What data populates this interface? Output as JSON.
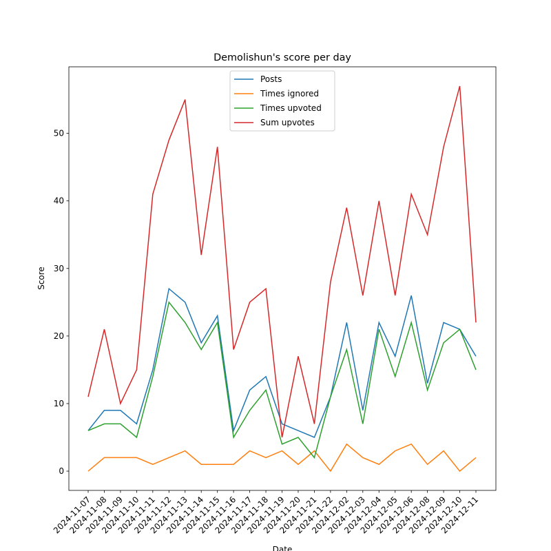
{
  "chart_data": {
    "type": "line",
    "title": "Demolishun's score per day",
    "x_label": "Date",
    "y_label": "Score",
    "categories": [
      "2024-11-07",
      "2024-11-08",
      "2024-11-09",
      "2024-11-10",
      "2024-11-11",
      "2024-11-12",
      "2024-11-13",
      "2024-11-14",
      "2024-11-15",
      "2024-11-16",
      "2024-11-17",
      "2024-11-18",
      "2024-11-19",
      "2024-11-20",
      "2024-11-21",
      "2024-11-22",
      "2024-12-02",
      "2024-12-03",
      "2024-12-04",
      "2024-12-05",
      "2024-12-06",
      "2024-12-08",
      "2024-12-09",
      "2024-12-10",
      "2024-12-11"
    ],
    "series": [
      {
        "name": "Posts",
        "color": "#1f77b4",
        "values": [
          6,
          9,
          9,
          7,
          15,
          27,
          25,
          19,
          23,
          6,
          12,
          14,
          7,
          6,
          5,
          11,
          22,
          9,
          22,
          17,
          26,
          13,
          22,
          21,
          17
        ]
      },
      {
        "name": "Times ignored",
        "color": "#ff7f0e",
        "values": [
          0,
          2,
          2,
          2,
          1,
          2,
          3,
          1,
          1,
          1,
          3,
          2,
          3,
          1,
          3,
          0,
          4,
          2,
          1,
          3,
          4,
          1,
          3,
          0,
          2
        ]
      },
      {
        "name": "Times upvoted",
        "color": "#2ca02c",
        "values": [
          6,
          7,
          7,
          5,
          14,
          25,
          22,
          18,
          22,
          5,
          9,
          12,
          4,
          5,
          2,
          11,
          18,
          7,
          21,
          14,
          22,
          12,
          19,
          21,
          15
        ]
      },
      {
        "name": "Sum upvotes",
        "color": "#d62728",
        "values": [
          11,
          21,
          10,
          15,
          41,
          49,
          55,
          32,
          48,
          18,
          25,
          27,
          5,
          17,
          7,
          28,
          39,
          26,
          40,
          26,
          41,
          35,
          48,
          57,
          22
        ]
      }
    ],
    "ylim": [
      -2.85,
      59.85
    ],
    "yticks": [
      0,
      10,
      20,
      30,
      40,
      50
    ],
    "legend": "upper center"
  }
}
